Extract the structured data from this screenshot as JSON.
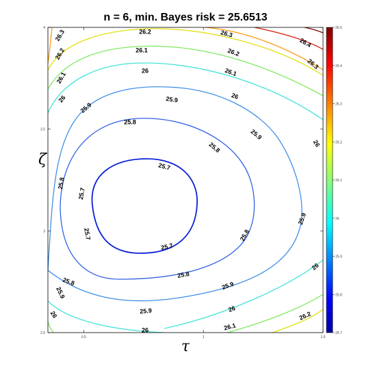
{
  "chart_data": {
    "type": "contour",
    "title": "n = 6, min. Bayes risk = 25.6513",
    "xlabel": "τ",
    "ylabel": "ζ",
    "xlim": [
      0.35,
      1.5
    ],
    "ylim": [
      2.5,
      4.0
    ],
    "x_ticks": [
      "0.5",
      "1",
      "1.5"
    ],
    "y_ticks": [
      "2.5",
      "3",
      "3.5",
      "4"
    ],
    "colorbar": {
      "range": [
        25.7,
        26.5
      ],
      "ticks": [
        "25.7",
        "25.8",
        "25.9",
        "26",
        "26.1",
        "26.2",
        "26.3",
        "26.4",
        "26.5"
      ],
      "colormap": "jet"
    },
    "contour_levels": [
      {
        "level": "25.7",
        "color": "#0a1fd6",
        "labels": 4
      },
      {
        "level": "25.8",
        "color": "#2f60e6",
        "labels": 4
      },
      {
        "level": "25.9",
        "color": "#3f8fe8",
        "labels": 6
      },
      {
        "level": "26",
        "color": "#41e3d8",
        "labels": 6
      },
      {
        "level": "26.1",
        "color": "#7fe85f",
        "labels": 4
      },
      {
        "level": "26.2",
        "color": "#e0e00f",
        "labels": 4
      },
      {
        "level": "26.3",
        "color": "#ff9a12",
        "labels": 3
      },
      {
        "level": "26.4",
        "color": "#d92010",
        "labels": 1
      },
      {
        "level": "26.5",
        "color": "#7a0000",
        "labels": 0
      }
    ]
  }
}
